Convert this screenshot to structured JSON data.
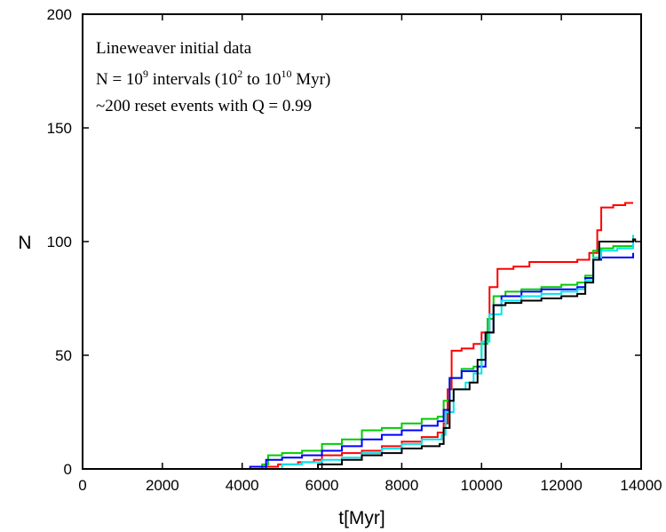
{
  "chart_data": {
    "type": "line",
    "xlabel": "t[Myr]",
    "ylabel": "N",
    "xlim": [
      0,
      14000
    ],
    "ylim": [
      0,
      200
    ],
    "xticks": [
      0,
      2000,
      4000,
      6000,
      8000,
      10000,
      12000,
      14000
    ],
    "yticks": [
      0,
      50,
      100,
      150,
      200
    ],
    "grid": false,
    "annotations": {
      "line1": "Lineweaver initial data",
      "line2_pre": "N = 10",
      "line2_sup1": "9",
      "line2_mid": " intervals (10",
      "line2_sup2": "2",
      "line2_mid2": " to 10",
      "line2_sup3": "10",
      "line2_post": " Myr)",
      "line3": "~200 reset events with Q = 0.99"
    },
    "series": [
      {
        "color": "#ff0000",
        "points": [
          [
            4500,
            0
          ],
          [
            4600,
            1
          ],
          [
            4900,
            2
          ],
          [
            5400,
            3
          ],
          [
            5800,
            4
          ],
          [
            6000,
            6
          ],
          [
            6500,
            7
          ],
          [
            7000,
            8
          ],
          [
            7500,
            10
          ],
          [
            8000,
            12
          ],
          [
            8500,
            14
          ],
          [
            8900,
            16
          ],
          [
            9050,
            20
          ],
          [
            9150,
            35
          ],
          [
            9250,
            52
          ],
          [
            9500,
            53
          ],
          [
            9800,
            55
          ],
          [
            10000,
            60
          ],
          [
            10200,
            80
          ],
          [
            10400,
            88
          ],
          [
            10800,
            89
          ],
          [
            11200,
            91
          ],
          [
            12000,
            91
          ],
          [
            12400,
            92
          ],
          [
            12700,
            95
          ],
          [
            12900,
            105
          ],
          [
            13000,
            115
          ],
          [
            13300,
            116
          ],
          [
            13600,
            117
          ],
          [
            13800,
            117
          ]
        ]
      },
      {
        "color": "#00cc00",
        "points": [
          [
            4300,
            0
          ],
          [
            4500,
            2
          ],
          [
            4650,
            6
          ],
          [
            5000,
            7
          ],
          [
            5500,
            8
          ],
          [
            6000,
            11
          ],
          [
            6500,
            13
          ],
          [
            7000,
            17
          ],
          [
            7500,
            18
          ],
          [
            8000,
            20
          ],
          [
            8500,
            22
          ],
          [
            8900,
            23
          ],
          [
            9050,
            30
          ],
          [
            9200,
            40
          ],
          [
            9500,
            44
          ],
          [
            9800,
            45
          ],
          [
            10000,
            55
          ],
          [
            10150,
            66
          ],
          [
            10300,
            76
          ],
          [
            10600,
            78
          ],
          [
            11000,
            79
          ],
          [
            11500,
            80
          ],
          [
            12000,
            81
          ],
          [
            12400,
            82
          ],
          [
            12600,
            85
          ],
          [
            12800,
            96
          ],
          [
            13000,
            97
          ],
          [
            13300,
            98
          ],
          [
            13800,
            99
          ]
        ]
      },
      {
        "color": "#0000ff",
        "points": [
          [
            3600,
            0
          ],
          [
            4200,
            1
          ],
          [
            4600,
            4
          ],
          [
            5000,
            5
          ],
          [
            5500,
            6
          ],
          [
            6000,
            8
          ],
          [
            6500,
            10
          ],
          [
            7000,
            13
          ],
          [
            7500,
            15
          ],
          [
            8000,
            17
          ],
          [
            8500,
            19
          ],
          [
            8900,
            21
          ],
          [
            9050,
            26
          ],
          [
            9200,
            40
          ],
          [
            9500,
            43
          ],
          [
            9900,
            45
          ],
          [
            10100,
            60
          ],
          [
            10300,
            72
          ],
          [
            10500,
            76
          ],
          [
            11000,
            78
          ],
          [
            11500,
            79
          ],
          [
            12000,
            79
          ],
          [
            12400,
            80
          ],
          [
            12600,
            84
          ],
          [
            12800,
            92
          ],
          [
            13000,
            93
          ],
          [
            13400,
            93
          ],
          [
            13800,
            95
          ]
        ]
      },
      {
        "color": "#00e5ee",
        "points": [
          [
            4600,
            0
          ],
          [
            5000,
            2
          ],
          [
            5500,
            3
          ],
          [
            6000,
            4
          ],
          [
            6500,
            5
          ],
          [
            7000,
            7
          ],
          [
            7500,
            9
          ],
          [
            8000,
            11
          ],
          [
            8500,
            13
          ],
          [
            9000,
            15
          ],
          [
            9100,
            25
          ],
          [
            9300,
            35
          ],
          [
            9600,
            38
          ],
          [
            9800,
            42
          ],
          [
            10000,
            56
          ],
          [
            10200,
            68
          ],
          [
            10500,
            74
          ],
          [
            11000,
            76
          ],
          [
            11500,
            77
          ],
          [
            12000,
            78
          ],
          [
            12400,
            79
          ],
          [
            12600,
            83
          ],
          [
            12800,
            93
          ],
          [
            13000,
            96
          ],
          [
            13400,
            97
          ],
          [
            13800,
            103
          ]
        ]
      },
      {
        "color": "#000000",
        "points": [
          [
            5400,
            0
          ],
          [
            5900,
            2
          ],
          [
            6500,
            4
          ],
          [
            7000,
            6
          ],
          [
            7500,
            7
          ],
          [
            8000,
            9
          ],
          [
            8500,
            10
          ],
          [
            8950,
            11
          ],
          [
            9050,
            18
          ],
          [
            9200,
            30
          ],
          [
            9300,
            35
          ],
          [
            9700,
            38
          ],
          [
            9900,
            48
          ],
          [
            10100,
            60
          ],
          [
            10300,
            72
          ],
          [
            10600,
            73
          ],
          [
            11000,
            74
          ],
          [
            11500,
            75
          ],
          [
            12000,
            76
          ],
          [
            12400,
            77
          ],
          [
            12600,
            82
          ],
          [
            12800,
            92
          ],
          [
            12950,
            100
          ],
          [
            13400,
            100
          ],
          [
            13800,
            101
          ],
          [
            13850,
            100
          ]
        ]
      }
    ]
  }
}
